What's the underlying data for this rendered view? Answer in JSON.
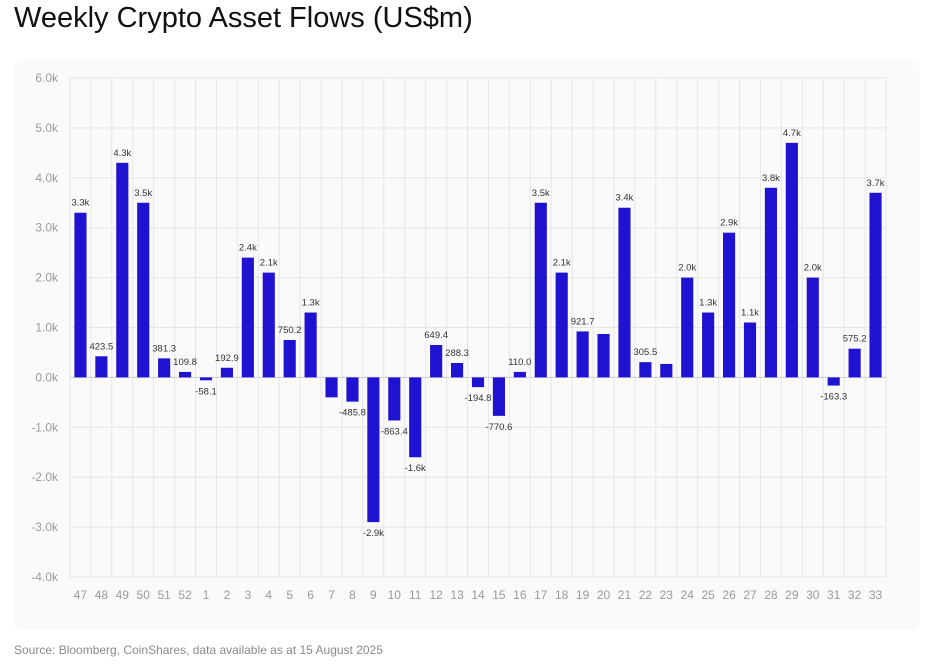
{
  "title": "Weekly Crypto Asset Flows (US$m)",
  "source": "Source: Bloomberg, CoinShares, data available as at 15 August 2025",
  "colors": {
    "bar": "#1f12d0",
    "grid": "#e6e6e6",
    "zero_line": "#cfcfcf"
  },
  "chart_data": {
    "type": "bar",
    "title": "Weekly Crypto Asset Flows (US$m)",
    "xlabel": "",
    "ylabel": "",
    "ylim": [
      -4000,
      6000
    ],
    "y_ticks": [
      6000,
      5000,
      4000,
      3000,
      2000,
      1000,
      0,
      -1000,
      -2000,
      -3000,
      -4000
    ],
    "y_tick_labels": [
      "6.0k",
      "5.0k",
      "4.0k",
      "3.0k",
      "2.0k",
      "1.0k",
      "0.0k",
      "-1.0k",
      "-2.0k",
      "-3.0k",
      "-4.0k"
    ],
    "grid": true,
    "legend": "none",
    "categories": [
      "47",
      "48",
      "49",
      "50",
      "51",
      "52",
      "1",
      "2",
      "3",
      "4",
      "5",
      "6",
      "7",
      "8",
      "9",
      "10",
      "11",
      "12",
      "13",
      "14",
      "15",
      "16",
      "17",
      "18",
      "19",
      "20",
      "21",
      "22",
      "23",
      "24",
      "25",
      "26",
      "27",
      "28",
      "29",
      "30",
      "31",
      "32",
      "33"
    ],
    "values": [
      3300,
      423.5,
      4300,
      3500,
      381.3,
      109.8,
      -58.1,
      192.9,
      2400,
      2100,
      750.2,
      1300,
      -400,
      -485.8,
      -2900,
      -863.4,
      -1600,
      649.4,
      288.3,
      -194.8,
      -770.6,
      110.0,
      3500,
      2100,
      921.7,
      870,
      3400,
      305.5,
      270,
      2000,
      1300,
      2900,
      1100,
      3800,
      4700,
      2000,
      -163.3,
      575.2,
      3700
    ],
    "data_labels": [
      "3.3k",
      "423.5",
      "4.3k",
      "3.5k",
      "381.3",
      "109.8",
      "-58.1",
      "192.9",
      "2.4k",
      "2.1k",
      "750.2",
      "1.3k",
      "",
      "-485.8",
      "-2.9k",
      "-863.4",
      "-1.6k",
      "649.4",
      "288.3",
      "-194.8",
      "-770.6",
      "110.0",
      "3.5k",
      "2.1k",
      "921.7",
      "",
      "3.4k",
      "305.5",
      "",
      "2.0k",
      "1.3k",
      "2.9k",
      "1.1k",
      "3.8k",
      "4.7k",
      "2.0k",
      "-163.3",
      "575.2",
      "3.7k"
    ]
  }
}
